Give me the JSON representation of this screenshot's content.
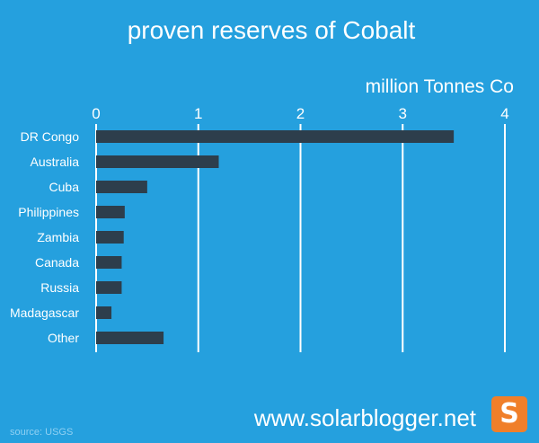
{
  "chart_data": {
    "type": "bar",
    "orientation": "horizontal",
    "title": "proven reserves of Cobalt",
    "xlabel": "million Tonnes Co",
    "ylabel": "",
    "xlim": [
      0,
      4
    ],
    "xticks": [
      0,
      1,
      2,
      3,
      4
    ],
    "tick_labels": [
      "0",
      "1",
      "2",
      "3",
      "4"
    ],
    "categories": [
      "DR Congo",
      "Australia",
      "Cuba",
      "Philippines",
      "Zambia",
      "Canada",
      "Russia",
      "Madagascar",
      "Other"
    ],
    "values": [
      3.5,
      1.2,
      0.5,
      0.28,
      0.27,
      0.25,
      0.25,
      0.15,
      0.66
    ],
    "grid": true,
    "axis_position": "top",
    "bar_color": "#2d3e4c",
    "background_color": "#25a0de",
    "gridline_color": "#ffffff"
  },
  "footer": {
    "source": "source: USGS",
    "website": "www.solarblogger.net",
    "logo_letter": "S",
    "logo_color": "#f07f2a"
  }
}
